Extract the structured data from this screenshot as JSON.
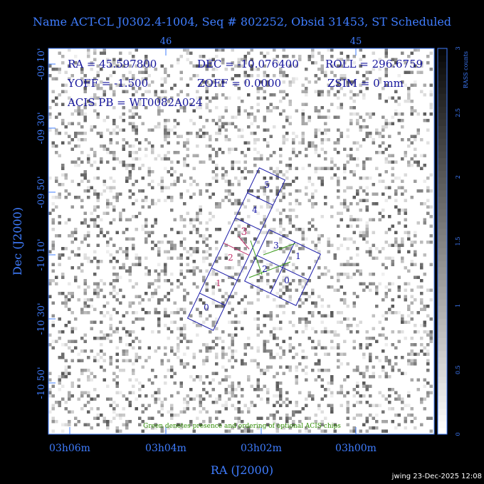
{
  "title": "Name ACT-CL J0302.4-1004, Seq # 802252, Obsid 31453, ST Scheduled",
  "top_axis": {
    "ticks": [
      "46",
      "45"
    ]
  },
  "left_axis": {
    "label": "Dec (J2000)",
    "ticks": [
      "-09 10'",
      "-09 30'",
      "-09 50'",
      "-10 10'",
      "-10 30'",
      "-10 50'"
    ]
  },
  "bottom_axis": {
    "label": "RA (J2000)",
    "ticks": [
      "03h06m",
      "03h04m",
      "03h02m",
      "03h00m"
    ]
  },
  "info": [
    "RA = 45.597800",
    "DEC = -10.076400",
    "ROLL = 296.6759",
    "YOFF = -1.500",
    "ZOFF = 0.0000",
    "ZSIM = 0 mm",
    "ACIS PB = WT0082A024"
  ],
  "chips": {
    "acis_s": [
      "0",
      "1",
      "2",
      "3",
      "4",
      "5"
    ],
    "acis_i": [
      "0",
      "1",
      "2",
      "3"
    ]
  },
  "colorbar": {
    "label": "RASS counts",
    "ticks": [
      0,
      0.5,
      1,
      1.5,
      2,
      2.5,
      3
    ]
  },
  "note": "Green denotes presence and ordering of optional ACIS chips",
  "footer": "jwing 23-Dec-2025 12:08"
}
